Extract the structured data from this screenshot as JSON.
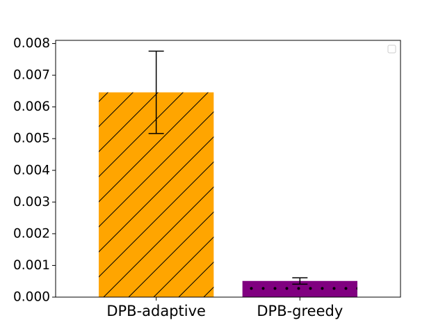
{
  "chart_data": {
    "type": "bar",
    "title": "",
    "xlabel": "",
    "ylabel": "",
    "categories": [
      "DPB-adaptive",
      "DPB-greedy"
    ],
    "values": [
      0.00646,
      0.00051
    ],
    "error_low": [
      0.00516,
      0.00041
    ],
    "error_high": [
      0.00776,
      0.00061
    ],
    "ylim": [
      0,
      0.0081
    ],
    "yticks": [
      0.0,
      0.001,
      0.002,
      0.003,
      0.004,
      0.005,
      0.006,
      0.007,
      0.008
    ],
    "ytick_labels": [
      "0.000",
      "0.001",
      "0.002",
      "0.003",
      "0.004",
      "0.005",
      "0.006",
      "0.007",
      "0.008"
    ],
    "bar_colors": [
      "#FFA500",
      "#800080"
    ],
    "bar_hatches": [
      "diagonal",
      "dots"
    ],
    "legend": {
      "location": "top-right",
      "entries": []
    },
    "grid": false
  }
}
